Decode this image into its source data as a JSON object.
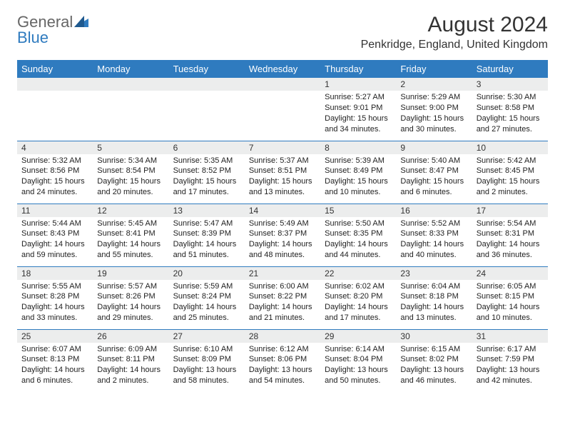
{
  "brand": {
    "part1": "General",
    "part2": "Blue"
  },
  "title": "August 2024",
  "location": "Penkridge, England, United Kingdom",
  "colors": {
    "header_bg": "#2f7bbf",
    "daynum_bg": "#eceded",
    "row_border": "#2f7bbf",
    "text": "#222222",
    "page_bg": "#ffffff"
  },
  "day_headers": [
    "Sunday",
    "Monday",
    "Tuesday",
    "Wednesday",
    "Thursday",
    "Friday",
    "Saturday"
  ],
  "weeks": [
    [
      {
        "n": "",
        "sr": "",
        "ss": "",
        "dl": ""
      },
      {
        "n": "",
        "sr": "",
        "ss": "",
        "dl": ""
      },
      {
        "n": "",
        "sr": "",
        "ss": "",
        "dl": ""
      },
      {
        "n": "",
        "sr": "",
        "ss": "",
        "dl": ""
      },
      {
        "n": "1",
        "sr": "Sunrise: 5:27 AM",
        "ss": "Sunset: 9:01 PM",
        "dl": "Daylight: 15 hours and 34 minutes."
      },
      {
        "n": "2",
        "sr": "Sunrise: 5:29 AM",
        "ss": "Sunset: 9:00 PM",
        "dl": "Daylight: 15 hours and 30 minutes."
      },
      {
        "n": "3",
        "sr": "Sunrise: 5:30 AM",
        "ss": "Sunset: 8:58 PM",
        "dl": "Daylight: 15 hours and 27 minutes."
      }
    ],
    [
      {
        "n": "4",
        "sr": "Sunrise: 5:32 AM",
        "ss": "Sunset: 8:56 PM",
        "dl": "Daylight: 15 hours and 24 minutes."
      },
      {
        "n": "5",
        "sr": "Sunrise: 5:34 AM",
        "ss": "Sunset: 8:54 PM",
        "dl": "Daylight: 15 hours and 20 minutes."
      },
      {
        "n": "6",
        "sr": "Sunrise: 5:35 AM",
        "ss": "Sunset: 8:52 PM",
        "dl": "Daylight: 15 hours and 17 minutes."
      },
      {
        "n": "7",
        "sr": "Sunrise: 5:37 AM",
        "ss": "Sunset: 8:51 PM",
        "dl": "Daylight: 15 hours and 13 minutes."
      },
      {
        "n": "8",
        "sr": "Sunrise: 5:39 AM",
        "ss": "Sunset: 8:49 PM",
        "dl": "Daylight: 15 hours and 10 minutes."
      },
      {
        "n": "9",
        "sr": "Sunrise: 5:40 AM",
        "ss": "Sunset: 8:47 PM",
        "dl": "Daylight: 15 hours and 6 minutes."
      },
      {
        "n": "10",
        "sr": "Sunrise: 5:42 AM",
        "ss": "Sunset: 8:45 PM",
        "dl": "Daylight: 15 hours and 2 minutes."
      }
    ],
    [
      {
        "n": "11",
        "sr": "Sunrise: 5:44 AM",
        "ss": "Sunset: 8:43 PM",
        "dl": "Daylight: 14 hours and 59 minutes."
      },
      {
        "n": "12",
        "sr": "Sunrise: 5:45 AM",
        "ss": "Sunset: 8:41 PM",
        "dl": "Daylight: 14 hours and 55 minutes."
      },
      {
        "n": "13",
        "sr": "Sunrise: 5:47 AM",
        "ss": "Sunset: 8:39 PM",
        "dl": "Daylight: 14 hours and 51 minutes."
      },
      {
        "n": "14",
        "sr": "Sunrise: 5:49 AM",
        "ss": "Sunset: 8:37 PM",
        "dl": "Daylight: 14 hours and 48 minutes."
      },
      {
        "n": "15",
        "sr": "Sunrise: 5:50 AM",
        "ss": "Sunset: 8:35 PM",
        "dl": "Daylight: 14 hours and 44 minutes."
      },
      {
        "n": "16",
        "sr": "Sunrise: 5:52 AM",
        "ss": "Sunset: 8:33 PM",
        "dl": "Daylight: 14 hours and 40 minutes."
      },
      {
        "n": "17",
        "sr": "Sunrise: 5:54 AM",
        "ss": "Sunset: 8:31 PM",
        "dl": "Daylight: 14 hours and 36 minutes."
      }
    ],
    [
      {
        "n": "18",
        "sr": "Sunrise: 5:55 AM",
        "ss": "Sunset: 8:28 PM",
        "dl": "Daylight: 14 hours and 33 minutes."
      },
      {
        "n": "19",
        "sr": "Sunrise: 5:57 AM",
        "ss": "Sunset: 8:26 PM",
        "dl": "Daylight: 14 hours and 29 minutes."
      },
      {
        "n": "20",
        "sr": "Sunrise: 5:59 AM",
        "ss": "Sunset: 8:24 PM",
        "dl": "Daylight: 14 hours and 25 minutes."
      },
      {
        "n": "21",
        "sr": "Sunrise: 6:00 AM",
        "ss": "Sunset: 8:22 PM",
        "dl": "Daylight: 14 hours and 21 minutes."
      },
      {
        "n": "22",
        "sr": "Sunrise: 6:02 AM",
        "ss": "Sunset: 8:20 PM",
        "dl": "Daylight: 14 hours and 17 minutes."
      },
      {
        "n": "23",
        "sr": "Sunrise: 6:04 AM",
        "ss": "Sunset: 8:18 PM",
        "dl": "Daylight: 14 hours and 13 minutes."
      },
      {
        "n": "24",
        "sr": "Sunrise: 6:05 AM",
        "ss": "Sunset: 8:15 PM",
        "dl": "Daylight: 14 hours and 10 minutes."
      }
    ],
    [
      {
        "n": "25",
        "sr": "Sunrise: 6:07 AM",
        "ss": "Sunset: 8:13 PM",
        "dl": "Daylight: 14 hours and 6 minutes."
      },
      {
        "n": "26",
        "sr": "Sunrise: 6:09 AM",
        "ss": "Sunset: 8:11 PM",
        "dl": "Daylight: 14 hours and 2 minutes."
      },
      {
        "n": "27",
        "sr": "Sunrise: 6:10 AM",
        "ss": "Sunset: 8:09 PM",
        "dl": "Daylight: 13 hours and 58 minutes."
      },
      {
        "n": "28",
        "sr": "Sunrise: 6:12 AM",
        "ss": "Sunset: 8:06 PM",
        "dl": "Daylight: 13 hours and 54 minutes."
      },
      {
        "n": "29",
        "sr": "Sunrise: 6:14 AM",
        "ss": "Sunset: 8:04 PM",
        "dl": "Daylight: 13 hours and 50 minutes."
      },
      {
        "n": "30",
        "sr": "Sunrise: 6:15 AM",
        "ss": "Sunset: 8:02 PM",
        "dl": "Daylight: 13 hours and 46 minutes."
      },
      {
        "n": "31",
        "sr": "Sunrise: 6:17 AM",
        "ss": "Sunset: 7:59 PM",
        "dl": "Daylight: 13 hours and 42 minutes."
      }
    ]
  ]
}
